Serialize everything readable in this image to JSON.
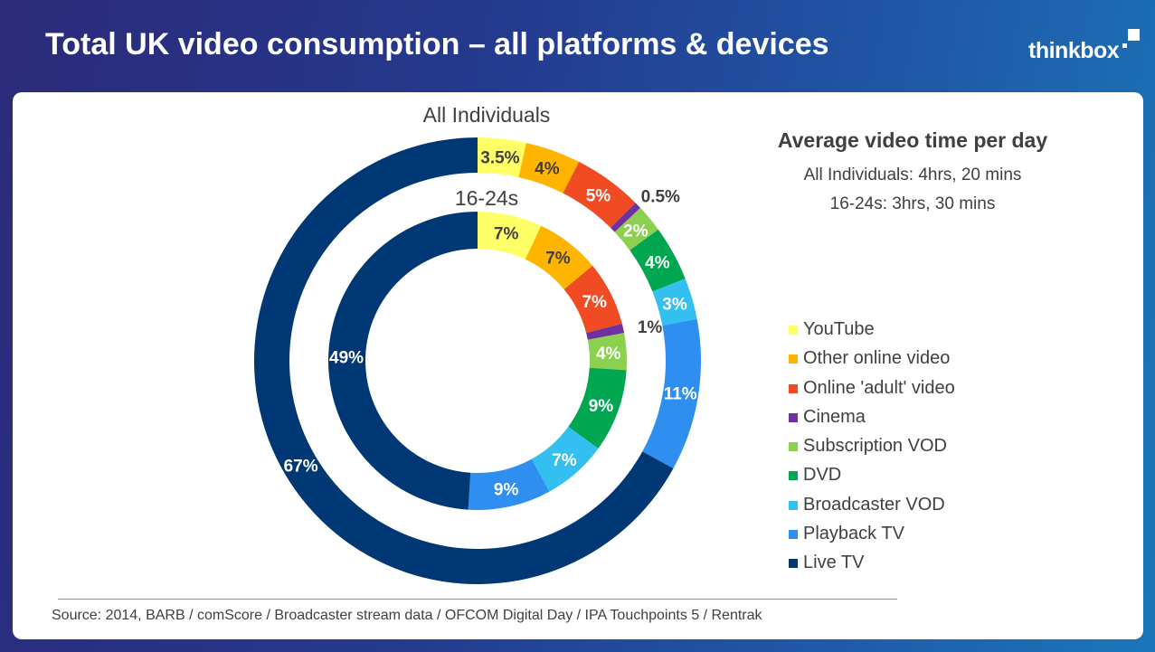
{
  "slide": {
    "title": "Total UK video consumption – all platforms & devices",
    "logo": "thinkbox"
  },
  "sidebar": {
    "heading": "Average video time per day",
    "line1": "All Individuals: 4hrs, 20 mins",
    "line2": "16-24s: 3hrs, 30 mins"
  },
  "legend": [
    {
      "label": "YouTube",
      "color": "#ffff66"
    },
    {
      "label": "Other online video",
      "color": "#ffb400"
    },
    {
      "label": "Online 'adult' video",
      "color": "#f04b23"
    },
    {
      "label": "Cinema",
      "color": "#7030a0"
    },
    {
      "label": "Subscription VOD",
      "color": "#8cd050"
    },
    {
      "label": "DVD",
      "color": "#00a650"
    },
    {
      "label": "Broadcaster VOD",
      "color": "#33bff0"
    },
    {
      "label": "Playback TV",
      "color": "#2e8ff0"
    },
    {
      "label": "Live TV",
      "color": "#003875"
    }
  ],
  "source": "Source: 2014, BARB / comScore / Broadcaster stream data / OFCOM Digital Day / IPA Touchpoints 5 / Rentrak",
  "chart_data": {
    "type": "donut",
    "categories": [
      "YouTube",
      "Other online video",
      "Online 'adult' video",
      "Cinema",
      "Subscription VOD",
      "DVD",
      "Broadcaster VOD",
      "Playback TV",
      "Live TV"
    ],
    "series": [
      {
        "name": "All Individuals",
        "values": [
          3.5,
          4,
          5,
          0.5,
          2,
          4,
          3,
          11,
          67
        ],
        "labels": [
          "3.5%",
          "4%",
          "5%",
          "0.5%",
          "2%",
          "4%",
          "3%",
          "11%",
          "67%"
        ]
      },
      {
        "name": "16-24s",
        "values": [
          7,
          7,
          7,
          1,
          4,
          9,
          7,
          9,
          49
        ],
        "labels": [
          "7%",
          "7%",
          "7%",
          "1%",
          "4%",
          "9%",
          "7%",
          "9%",
          "49%"
        ]
      }
    ],
    "colors": [
      "#ffff66",
      "#ffb400",
      "#f04b23",
      "#7030a0",
      "#8cd050",
      "#00a650",
      "#33bff0",
      "#2e8ff0",
      "#003875"
    ],
    "label_colors": [
      "#404040",
      "#404040",
      "#ffffff",
      "#404040",
      "#ffffff",
      "#ffffff",
      "#ffffff",
      "#ffffff",
      "#ffffff"
    ],
    "legend_position": "right"
  }
}
